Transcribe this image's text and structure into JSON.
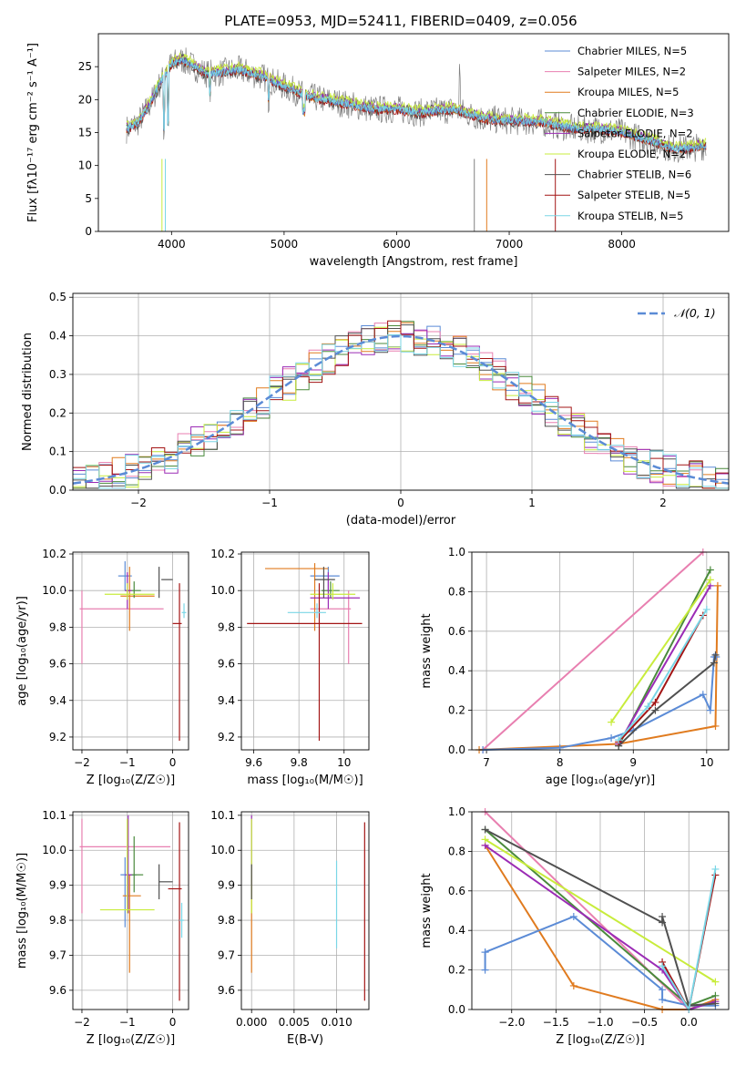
{
  "title": "PLATE=0953, MJD=52411, FIBERID=0409, z=0.056",
  "colors": {
    "chabrier_miles": "#5b8bd6",
    "salpeter_miles": "#e87fb0",
    "kroupa_miles": "#e07b1f",
    "chabrier_elodie": "#4a8a3c",
    "salpeter_elodie": "#9b2bb5",
    "kroupa_elodie": "#c8ec3c",
    "chabrier_stelib": "#505050",
    "salpeter_stelib": "#a31515",
    "kroupa_stelib": "#7ad6e6",
    "data": "#808080",
    "normal": "#5b8bd6"
  },
  "chart_data": [
    {
      "type": "line",
      "xlabel": "wavelength [Angstrom, rest frame]",
      "ylabel": "Flux [fλ10⁻¹⁷ erg cm⁻² s⁻¹ A⁻¹]",
      "xlim": [
        3350,
        8950
      ],
      "ylim": [
        0,
        30
      ],
      "xticks": [
        4000,
        5000,
        6000,
        7000,
        8000
      ],
      "yticks": [
        0,
        5,
        10,
        15,
        20,
        25
      ],
      "grid": false,
      "legend": "top-right",
      "series": [
        {
          "name": "Chabrier MILES, N_SSP=5",
          "key": "chabrier_miles"
        },
        {
          "name": "Salpeter MILES, N_SSP=2",
          "key": "salpeter_miles"
        },
        {
          "name": "Kroupa MILES, N_SSP=5",
          "key": "kroupa_miles"
        },
        {
          "name": "Chabrier ELODIE, N_SSP=3",
          "key": "chabrier_elodie"
        },
        {
          "name": "Salpeter ELODIE, N_SSP=2",
          "key": "salpeter_elodie"
        },
        {
          "name": "Kroupa ELODIE, N_SSP=2",
          "key": "kroupa_elodie"
        },
        {
          "name": "Chabrier STELIB, N_SSP=6",
          "key": "chabrier_stelib"
        },
        {
          "name": "Salpeter STELIB, N_SSP=5",
          "key": "salpeter_stelib"
        },
        {
          "name": "Kroupa STELIB, N_SSP=5",
          "key": "kroupa_stelib"
        }
      ],
      "continuum": [
        [
          3600,
          15.5
        ],
        [
          3700,
          16.5
        ],
        [
          3800,
          19
        ],
        [
          3900,
          22.5
        ],
        [
          4000,
          25.5
        ],
        [
          4100,
          26
        ],
        [
          4200,
          25
        ],
        [
          4300,
          24
        ],
        [
          4400,
          24
        ],
        [
          4600,
          24.5
        ],
        [
          4800,
          23.5
        ],
        [
          5000,
          22
        ],
        [
          5200,
          20.5
        ],
        [
          5500,
          19.5
        ],
        [
          5800,
          18.5
        ],
        [
          6000,
          18.5
        ],
        [
          6200,
          18
        ],
        [
          6500,
          18.5
        ],
        [
          6800,
          17
        ],
        [
          7000,
          16.8
        ],
        [
          7300,
          16.5
        ],
        [
          7600,
          15.5
        ],
        [
          7800,
          15.5
        ],
        [
          8000,
          15
        ],
        [
          8200,
          14
        ],
        [
          8300,
          13.5
        ],
        [
          8450,
          12.5
        ],
        [
          8550,
          12.5
        ],
        [
          8750,
          13
        ]
      ]
    },
    {
      "type": "line",
      "xlabel": "(data-model)/error",
      "ylabel": "Normed distribution",
      "xlim": [
        -2.5,
        2.5
      ],
      "ylim": [
        0,
        0.51
      ],
      "xticks": [
        -2,
        -1,
        0,
        1,
        2
      ],
      "yticks": [
        0.0,
        0.1,
        0.2,
        0.3,
        0.4,
        0.5
      ],
      "grid": true,
      "legend": "top-right",
      "normal_label": "𝒩(0, 1)"
    },
    {
      "type": "scatter",
      "xlabel": "Z [log₁₀(Z/Z☉)]",
      "ylabel": "age  [log₁₀(age/yr)]",
      "xlim": [
        -2.2,
        0.35
      ],
      "ylim": [
        9.13,
        10.21
      ],
      "xticks": [
        -2,
        -1,
        0
      ],
      "yticks": [
        9.2,
        9.4,
        9.6,
        9.8,
        10.0,
        10.2
      ],
      "points": [
        {
          "key": "chabrier_miles",
          "x": -1.05,
          "xerr": 0.15,
          "y": 10.08,
          "yerr": 0.08
        },
        {
          "key": "salpeter_miles",
          "x": -2.0,
          "xerr": 0.0,
          "xlo": -2.05,
          "xhi": -0.2,
          "y": 9.9,
          "ylo": 9.6,
          "yhi": 10.0
        },
        {
          "key": "kroupa_miles",
          "x": -0.95,
          "xlo": -1.15,
          "xhi": -0.4,
          "y": 9.97,
          "ylo": 9.78,
          "yhi": 10.13
        },
        {
          "key": "chabrier_elodie",
          "x": -0.85,
          "xlo": -1.05,
          "xhi": -0.7,
          "y": 10.0,
          "ylo": 9.96,
          "yhi": 10.05
        },
        {
          "key": "salpeter_elodie",
          "x": -1.0,
          "xlo": -1.05,
          "xhi": -0.9,
          "y": 10.0,
          "ylo": 9.9,
          "yhi": 10.1
        },
        {
          "key": "kroupa_elodie",
          "x": -1.0,
          "xlo": -1.5,
          "xhi": -0.4,
          "y": 9.98,
          "ylo": 9.95,
          "yhi": 10.04
        },
        {
          "key": "chabrier_stelib",
          "x": -0.3,
          "xlo": -0.25,
          "xhi": 0.0,
          "y": 10.06,
          "ylo": 9.96,
          "yhi": 10.13
        },
        {
          "key": "salpeter_stelib",
          "x": 0.15,
          "xlo": 0.0,
          "xhi": 0.2,
          "y": 9.82,
          "ylo": 9.18,
          "yhi": 10.04
        },
        {
          "key": "kroupa_stelib",
          "x": 0.25,
          "xlo": 0.2,
          "xhi": 0.3,
          "y": 9.88,
          "ylo": 9.85,
          "yhi": 9.93
        }
      ]
    },
    {
      "type": "scatter",
      "xlabel": "mass [log₁₀(M/M☉)]",
      "ylabel": "",
      "xlim": [
        9.545,
        10.11
      ],
      "ylim": [
        9.13,
        10.21
      ],
      "xticks": [
        9.6,
        9.8,
        10.0
      ],
      "yticks": [
        9.2,
        9.4,
        9.6,
        9.8,
        10.0,
        10.2
      ],
      "points": [
        {
          "key": "chabrier_miles",
          "x": 9.93,
          "xlo": 9.85,
          "xhi": 9.98,
          "y": 10.08,
          "ylo": 10.0,
          "yhi": 10.13
        },
        {
          "key": "salpeter_miles",
          "x": 10.02,
          "xlo": 9.85,
          "xhi": 10.03,
          "y": 9.9,
          "ylo": 9.6,
          "yhi": 10.0
        },
        {
          "key": "kroupa_miles",
          "x": 9.87,
          "xlo": 9.65,
          "xhi": 9.93,
          "y": 10.12,
          "ylo": 9.78,
          "yhi": 10.15
        },
        {
          "key": "chabrier_elodie",
          "x": 9.94,
          "xlo": 9.9,
          "xhi": 9.98,
          "y": 10.0,
          "ylo": 9.96,
          "yhi": 10.05
        },
        {
          "key": "salpeter_elodie",
          "x": 9.93,
          "xlo": 9.85,
          "xhi": 10.07,
          "y": 9.96,
          "ylo": 9.9,
          "yhi": 10.1
        },
        {
          "key": "kroupa_elodie",
          "x": 9.95,
          "xlo": 9.85,
          "xhi": 10.05,
          "y": 9.98,
          "ylo": 9.95,
          "yhi": 10.04
        },
        {
          "key": "chabrier_stelib",
          "x": 9.91,
          "xlo": 9.87,
          "xhi": 9.96,
          "y": 10.06,
          "ylo": 9.96,
          "yhi": 10.13
        },
        {
          "key": "salpeter_stelib",
          "x": 9.89,
          "xlo": 9.57,
          "xhi": 10.08,
          "y": 9.82,
          "ylo": 9.18,
          "yhi": 10.04
        },
        {
          "key": "kroupa_stelib",
          "x": 9.88,
          "xlo": 9.75,
          "xhi": 9.92,
          "y": 9.88,
          "ylo": 9.85,
          "yhi": 9.93
        }
      ]
    },
    {
      "type": "line",
      "xlabel": "age  [log₁₀(age/yr)]",
      "ylabel": "mass weight",
      "xlim": [
        6.8,
        10.3
      ],
      "ylim": [
        0,
        1.0
      ],
      "xticks": [
        7,
        8,
        9,
        10
      ],
      "yticks": [
        0.0,
        0.2,
        0.4,
        0.6,
        0.8,
        1.0
      ],
      "series": [
        {
          "key": "salpeter_miles",
          "x": [
            6.95,
            9.95
          ],
          "y": [
            0.0,
            1.0
          ]
        },
        {
          "key": "kroupa_miles",
          "x": [
            6.9,
            8.8,
            10.12,
            10.15
          ],
          "y": [
            0.0,
            0.03,
            0.12,
            0.83
          ]
        },
        {
          "key": "chabrier_miles",
          "x": [
            6.95,
            8.0,
            8.7,
            9.0,
            9.95,
            10.05,
            10.1,
            10.13
          ],
          "y": [
            0.0,
            0.01,
            0.06,
            0.1,
            0.28,
            0.2,
            0.47,
            0.47
          ]
        },
        {
          "key": "chabrier_elodie",
          "x": [
            8.8,
            10.05
          ],
          "y": [
            0.02,
            0.91
          ]
        },
        {
          "key": "salpeter_elodie",
          "x": [
            8.8,
            10.05
          ],
          "y": [
            0.03,
            0.83
          ]
        },
        {
          "key": "kroupa_elodie",
          "x": [
            8.7,
            10.05
          ],
          "y": [
            0.14,
            0.86
          ]
        },
        {
          "key": "chabrier_stelib",
          "x": [
            8.8,
            9.3,
            10.1,
            10.12
          ],
          "y": [
            0.02,
            0.2,
            0.44,
            0.48
          ]
        },
        {
          "key": "salpeter_stelib",
          "x": [
            8.8,
            9.3,
            9.95
          ],
          "y": [
            0.04,
            0.24,
            0.68
          ]
        },
        {
          "key": "kroupa_stelib",
          "x": [
            8.8,
            9.2,
            10.0
          ],
          "y": [
            0.05,
            0.22,
            0.71
          ]
        }
      ]
    },
    {
      "type": "scatter",
      "xlabel": "Z [log₁₀(Z/Z☉)]",
      "ylabel": "mass [log₁₀(M/M☉)]",
      "xlim": [
        -2.2,
        0.35
      ],
      "ylim": [
        9.545,
        10.11
      ],
      "xticks": [
        -2,
        -1,
        0
      ],
      "yticks": [
        9.6,
        9.7,
        9.8,
        9.9,
        10.0,
        10.1
      ],
      "points": [
        {
          "key": "chabrier_miles",
          "x": -1.05,
          "xlo": -1.15,
          "xhi": -0.8,
          "y": 9.93,
          "ylo": 9.78,
          "yhi": 9.98
        },
        {
          "key": "salpeter_miles",
          "x": -2.0,
          "xlo": -2.05,
          "xhi": -0.05,
          "y": 10.01,
          "ylo": 9.82,
          "yhi": 10.09
        },
        {
          "key": "kroupa_miles",
          "x": -0.95,
          "xlo": -1.1,
          "xhi": -0.7,
          "y": 9.87,
          "ylo": 9.65,
          "yhi": 9.93
        },
        {
          "key": "chabrier_elodie",
          "x": -0.85,
          "xlo": -0.95,
          "xhi": -0.65,
          "y": 9.93,
          "ylo": 9.88,
          "yhi": 10.04
        },
        {
          "key": "salpeter_elodie",
          "x": -0.98,
          "xlo": -1.05,
          "xhi": -0.9,
          "y": 9.93,
          "ylo": 9.82,
          "yhi": 10.1
        },
        {
          "key": "kroupa_elodie",
          "x": -1.0,
          "xlo": -1.6,
          "xhi": -0.4,
          "y": 9.83,
          "ylo": 9.82,
          "yhi": 10.09
        },
        {
          "key": "chabrier_stelib",
          "x": -0.3,
          "xlo": -0.3,
          "xhi": 0.0,
          "y": 9.91,
          "ylo": 9.86,
          "yhi": 9.96
        },
        {
          "key": "salpeter_stelib",
          "x": 0.15,
          "xlo": -0.1,
          "xhi": 0.2,
          "y": 9.89,
          "ylo": 9.57,
          "yhi": 10.08
        },
        {
          "key": "kroupa_stelib",
          "x": 0.2,
          "xlo": 0.15,
          "xhi": 0.25,
          "y": 9.8,
          "ylo": 9.75,
          "yhi": 9.85
        }
      ]
    },
    {
      "type": "scatter",
      "xlabel": "E(B-V)",
      "ylabel": "",
      "xlim": [
        -0.0012,
        0.0138
      ],
      "ylim": [
        9.545,
        10.11
      ],
      "xticks": [
        0.0,
        0.005,
        0.01
      ],
      "xticklabels": [
        "0.000",
        "0.005",
        "0.010"
      ],
      "yticks": [
        9.6,
        9.7,
        9.8,
        9.9,
        10.0,
        10.1
      ],
      "points": [
        {
          "key": "kroupa_miles",
          "x": 0.0,
          "y": 9.87,
          "ylo": 9.65,
          "yhi": 9.93
        },
        {
          "key": "salpeter_elodie",
          "x": 0.0,
          "y": 9.95,
          "ylo": 9.9,
          "yhi": 10.1
        },
        {
          "key": "kroupa_elodie",
          "x": 0.0,
          "y": 9.9,
          "ylo": 9.82,
          "yhi": 10.09
        },
        {
          "key": "chabrier_stelib",
          "x": 0.0,
          "y": 9.91,
          "ylo": 9.86,
          "yhi": 9.96
        },
        {
          "key": "kroupa_stelib",
          "x": 0.01,
          "y": 9.85,
          "ylo": 9.72,
          "yhi": 9.97
        },
        {
          "key": "salpeter_stelib",
          "x": 0.0133,
          "y": 9.89,
          "ylo": 9.57,
          "yhi": 10.08
        }
      ]
    },
    {
      "type": "line",
      "xlabel": "Z [log₁₀(Z/Z☉)]",
      "ylabel": "mass weight",
      "xlim": [
        -2.45,
        0.45
      ],
      "ylim": [
        0,
        1.0
      ],
      "xticks": [
        -2.0,
        -1.5,
        -1.0,
        -0.5,
        0.0
      ],
      "xticklabels": [
        "−2.0",
        "−1.5",
        "−1.0",
        "−0.5",
        "0.0"
      ],
      "yticks": [
        0.0,
        0.2,
        0.4,
        0.6,
        0.8,
        1.0
      ],
      "series": [
        {
          "key": "salpeter_miles",
          "x": [
            -2.3,
            0.0
          ],
          "y": [
            1.0,
            0.0
          ]
        },
        {
          "key": "kroupa_miles",
          "x": [
            -2.3,
            -1.3,
            -0.3,
            0.0,
            0.3
          ],
          "y": [
            0.83,
            0.12,
            0.0,
            0.0,
            0.05
          ]
        },
        {
          "key": "chabrier_miles",
          "x": [
            -2.3,
            -2.3,
            -2.3,
            -1.3,
            -0.3,
            -0.3,
            0.0,
            0.3
          ],
          "y": [
            0.2,
            0.29,
            0.29,
            0.47,
            0.1,
            0.05,
            0.02,
            0.02
          ]
        },
        {
          "key": "chabrier_elodie",
          "x": [
            -2.3,
            0.0,
            0.3
          ],
          "y": [
            0.91,
            0.02,
            0.07
          ]
        },
        {
          "key": "salpeter_elodie",
          "x": [
            -2.3,
            -0.3,
            0.0,
            0.3
          ],
          "y": [
            0.83,
            0.2,
            0.0,
            0.04
          ]
        },
        {
          "key": "kroupa_elodie",
          "x": [
            -2.3,
            0.3
          ],
          "y": [
            0.86,
            0.14
          ]
        },
        {
          "key": "chabrier_stelib",
          "x": [
            -2.3,
            -0.3,
            -0.3,
            0.0,
            0.3
          ],
          "y": [
            0.91,
            0.44,
            0.47,
            0.02,
            0.03
          ]
        },
        {
          "key": "salpeter_stelib",
          "x": [
            -0.3,
            0.0,
            0.3
          ],
          "y": [
            0.24,
            0.0,
            0.68
          ]
        },
        {
          "key": "kroupa_stelib",
          "x": [
            -0.3,
            0.0,
            0.3
          ],
          "y": [
            0.22,
            0.0,
            0.71
          ]
        }
      ]
    }
  ]
}
